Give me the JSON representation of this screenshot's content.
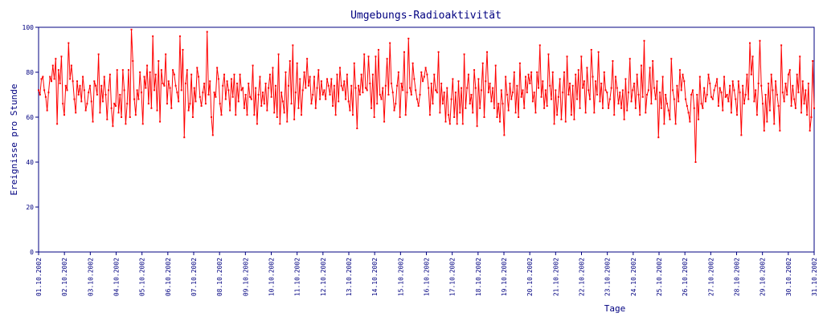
{
  "chart_data": {
    "type": "line",
    "title": "Umgebungs-Radioaktivität",
    "xlabel": "Tage",
    "ylabel": "Ereignisse pro Stunde",
    "ylim": [
      0,
      100
    ],
    "yticks": [
      0,
      20,
      40,
      60,
      80,
      100
    ],
    "xticks": [
      "01.10.2002",
      "02.10.2002",
      "03.10.2002",
      "04.10.2002",
      "05.10.2002",
      "06.10.2002",
      "07.10.2002",
      "08.10.2002",
      "09.10.2002",
      "10.10.2002",
      "11.10.2002",
      "12.10.2002",
      "13.10.2002",
      "14.10.2002",
      "15.10.2002",
      "16.10.2002",
      "17.10.2002",
      "18.10.2002",
      "19.10.2002",
      "20.10.2002",
      "21.10.2002",
      "22.10.2002",
      "23.10.2002",
      "24.10.2002",
      "25.10.2002",
      "26.10.2002",
      "27.10.2002",
      "28.10.2002",
      "29.10.2002",
      "30.10.2002",
      "31.10.2002"
    ],
    "grid": false,
    "legend": "none",
    "line_color": "#ff0000",
    "axis_color": "#000080",
    "points_per_day": 24,
    "series": [
      {
        "values": [
          72,
          70,
          77,
          78,
          72,
          69,
          63,
          71,
          78,
          76,
          83,
          77,
          86,
          57,
          81,
          75,
          87,
          66,
          61,
          74,
          72,
          93,
          77,
          83,
          76,
          68,
          62,
          76,
          70,
          74,
          67,
          78,
          72,
          63,
          66,
          71,
          74,
          67,
          58,
          76,
          74,
          70,
          88,
          62,
          74,
          67,
          78,
          70,
          59,
          72,
          79,
          64,
          56,
          66,
          65,
          81,
          62,
          70,
          60,
          81,
          72,
          57,
          66,
          81,
          60,
          99,
          85,
          68,
          61,
          72,
          68,
          80,
          71,
          57,
          78,
          73,
          83,
          66,
          80,
          64,
          96,
          72,
          79,
          63,
          85,
          58,
          81,
          75,
          74,
          88,
          66,
          76,
          73,
          64,
          81,
          79,
          74,
          71,
          67,
          96,
          72,
          90,
          51,
          75,
          81,
          63,
          66,
          79,
          60,
          73,
          67,
          82,
          78,
          69,
          65,
          71,
          75,
          66,
          98,
          70,
          76,
          60,
          52,
          71,
          69,
          82,
          77,
          66,
          61,
          74,
          79,
          68,
          76,
          72,
          63,
          77,
          69,
          79,
          61,
          75,
          67,
          79,
          72,
          73,
          64,
          70,
          61,
          75,
          69,
          68,
          83,
          61,
          73,
          57,
          70,
          78,
          65,
          71,
          66,
          75,
          63,
          73,
          79,
          69,
          82,
          62,
          74,
          60,
          88,
          57,
          71,
          67,
          62,
          80,
          58,
          74,
          85,
          66,
          92,
          59,
          71,
          84,
          64,
          77,
          61,
          72,
          80,
          73,
          86,
          74,
          78,
          66,
          70,
          78,
          64,
          73,
          81,
          68,
          76,
          70,
          72,
          68,
          77,
          74,
          70,
          77,
          65,
          74,
          61,
          79,
          67,
          82,
          74,
          72,
          76,
          68,
          79,
          67,
          63,
          74,
          61,
          84,
          73,
          55,
          74,
          70,
          79,
          71,
          88,
          73,
          72,
          87,
          75,
          64,
          79,
          60,
          87,
          66,
          90,
          70,
          68,
          73,
          58,
          74,
          86,
          70,
          93,
          75,
          71,
          63,
          66,
          74,
          80,
          60,
          75,
          72,
          89,
          61,
          71,
          95,
          73,
          70,
          84,
          77,
          72,
          68,
          65,
          70,
          80,
          76,
          78,
          82,
          79,
          73,
          61,
          75,
          66,
          79,
          72,
          71,
          89,
          62,
          75,
          66,
          71,
          58,
          73,
          61,
          57,
          68,
          77,
          60,
          71,
          57,
          76,
          62,
          73,
          57,
          88,
          64,
          73,
          79,
          66,
          70,
          62,
          81,
          73,
          56,
          77,
          64,
          72,
          84,
          60,
          76,
          89,
          71,
          75,
          67,
          73,
          64,
          83,
          60,
          66,
          58,
          72,
          66,
          52,
          78,
          70,
          63,
          75,
          68,
          71,
          80,
          62,
          74,
          60,
          84,
          69,
          72,
          64,
          78,
          71,
          79,
          75,
          80,
          67,
          71,
          62,
          80,
          73,
          92,
          69,
          76,
          64,
          72,
          65,
          88,
          74,
          68,
          80,
          57,
          72,
          61,
          69,
          77,
          59,
          71,
          80,
          58,
          87,
          70,
          75,
          61,
          74,
          59,
          79,
          68,
          81,
          64,
          87,
          73,
          76,
          62,
          82,
          72,
          68,
          90,
          78,
          62,
          76,
          70,
          89,
          67,
          75,
          64,
          80,
          72,
          71,
          64,
          68,
          73,
          85,
          61,
          78,
          73,
          66,
          71,
          64,
          72,
          59,
          77,
          63,
          71,
          86,
          67,
          72,
          75,
          64,
          79,
          70,
          61,
          83,
          69,
          94,
          62,
          70,
          72,
          82,
          66,
          85,
          73,
          68,
          76,
          51,
          71,
          64,
          78,
          57,
          70,
          66,
          63,
          59,
          86,
          72,
          68,
          57,
          74,
          67,
          81,
          72,
          79,
          76,
          68,
          65,
          62,
          58,
          70,
          72,
          64,
          40,
          70,
          59,
          78,
          66,
          64,
          73,
          67,
          70,
          79,
          75,
          69,
          68,
          72,
          74,
          77,
          65,
          73,
          71,
          63,
          78,
          69,
          70,
          67,
          74,
          62,
          76,
          72,
          68,
          61,
          76,
          71,
          52,
          74,
          66,
          70,
          79,
          68,
          93,
          79,
          87,
          67,
          72,
          61,
          75,
          94,
          74,
          66,
          54,
          70,
          58,
          75,
          63,
          79,
          72,
          57,
          76,
          70,
          65,
          54,
          92,
          71,
          67,
          75,
          70,
          79,
          81,
          65,
          74,
          68,
          64,
          79,
          71,
          87,
          62,
          76,
          66,
          72,
          61,
          75,
          54,
          60,
          85,
          64
        ]
      }
    ]
  }
}
